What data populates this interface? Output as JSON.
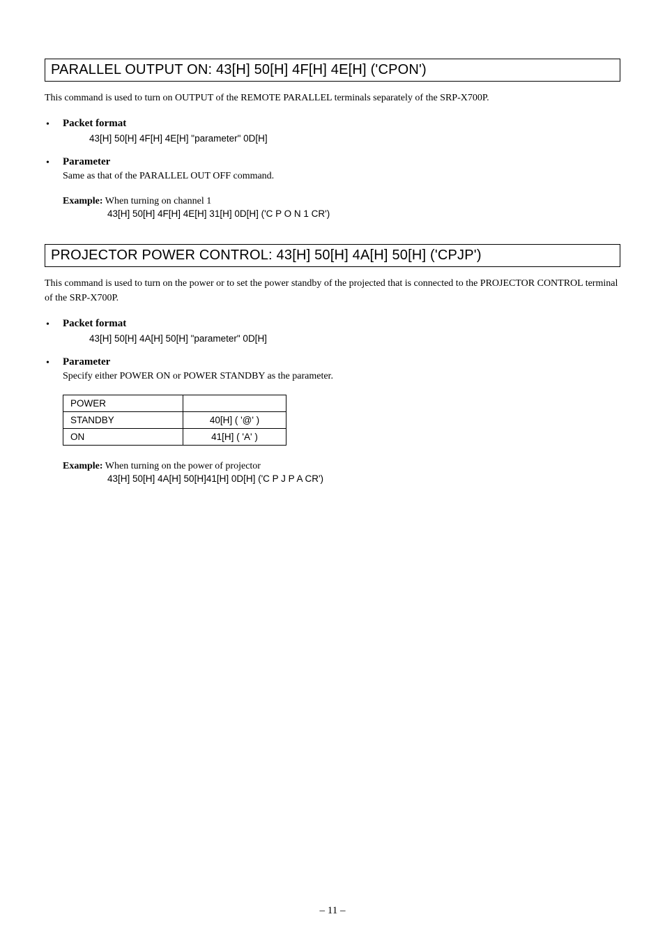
{
  "section1": {
    "title": "PARALLEL OUTPUT ON: 43[H] 50[H] 4F[H] 4E[H] ('CPON')",
    "intro": "This command is used to turn on OUTPUT of the REMOTE PARALLEL terminals separately of the SRP-X700P.",
    "packet_label": "Packet format",
    "packet_value": "43[H] 50[H] 4F[H] 4E[H] \"parameter\" 0D[H]",
    "param_label": "Parameter",
    "param_desc": "Same as that of the PARALLEL OUT OFF command.",
    "example_label": "Example:",
    "example_text": " When turning on channel 1",
    "example_code": "43[H] 50[H] 4F[H] 4E[H] 31[H] 0D[H] ('C P O N 1 CR')"
  },
  "section2": {
    "title": "PROJECTOR POWER CONTROL:  43[H] 50[H] 4A[H] 50[H] ('CPJP')",
    "intro": "This command is used to turn on the power or to set the power standby of the projected that is connected to the PROJECTOR CONTROL terminal of the SRP-X700P.",
    "packet_label": "Packet format",
    "packet_value": "43[H] 50[H] 4A[H] 50[H] \"parameter\" 0D[H]",
    "param_label": "Parameter",
    "param_desc": "Specify either POWER ON or POWER STANDBY as the parameter.",
    "table": {
      "header": "POWER",
      "rows": [
        {
          "name": "STANDBY",
          "value": "40[H] ( '@' )"
        },
        {
          "name": "ON",
          "value": "41[H] ( 'A' )"
        }
      ]
    },
    "example_label": "Example:",
    "example_text": " When turning on the power of projector",
    "example_code": "43[H] 50[H] 4A[H] 50[H]41[H] 0D[H] ('C P J P A CR')"
  },
  "page_number": "– 11 –"
}
